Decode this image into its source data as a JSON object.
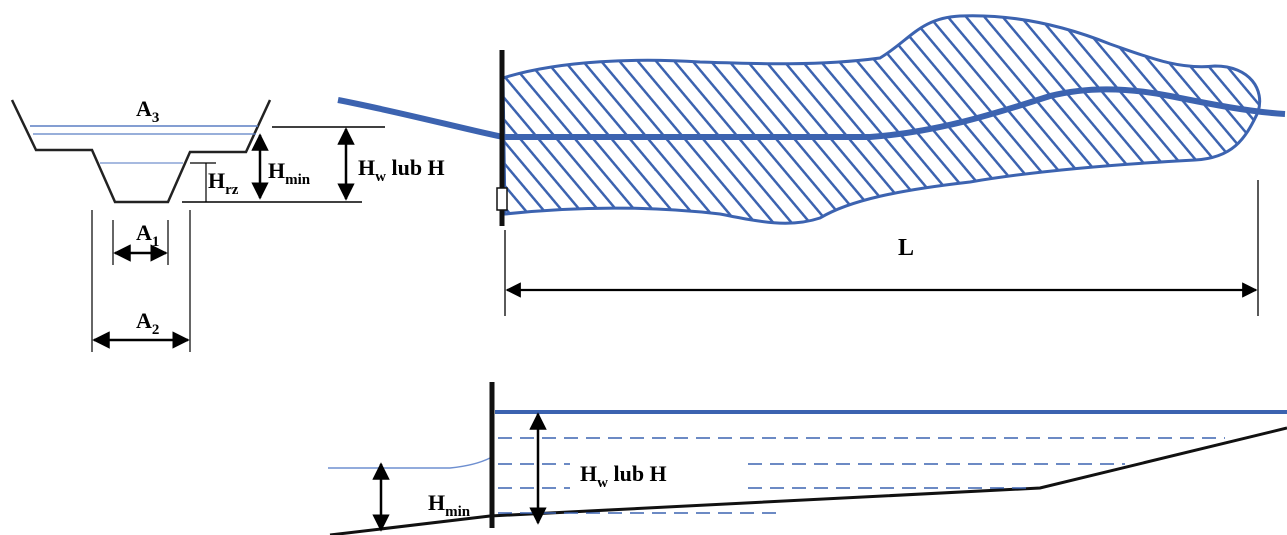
{
  "cross_section": {
    "a3": {
      "base": "A",
      "sub": "3"
    },
    "a1": {
      "base": "A",
      "sub": "1"
    },
    "a2": {
      "base": "A",
      "sub": "2"
    },
    "h_rz": {
      "base": "H",
      "sub": "rz"
    },
    "h_min": {
      "base": "H",
      "sub": "min"
    },
    "h_w": {
      "base": "H",
      "sub": "w",
      "tail": " lub H"
    }
  },
  "plan_view": {
    "length_label": "L"
  },
  "profile_view": {
    "h_w": {
      "base": "H",
      "sub": "w",
      "tail": " lub H"
    },
    "h_min": {
      "base": "H",
      "sub": "min"
    }
  },
  "colors": {
    "water": "#3c63b0",
    "water_light": "#6e8fd0",
    "structure": "#111111"
  }
}
